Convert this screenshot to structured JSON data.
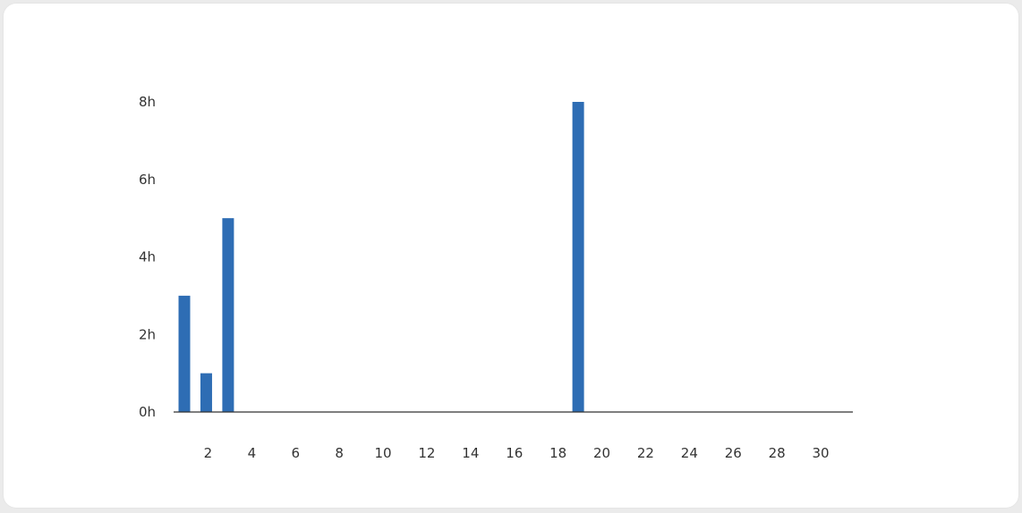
{
  "colors": {
    "bar": "#2e6db4",
    "axis": "#333333",
    "background": "#ffffff"
  },
  "chart_data": {
    "type": "bar",
    "title": "",
    "xlabel": "",
    "ylabel": "",
    "x": [
      1,
      2,
      3,
      4,
      5,
      6,
      7,
      8,
      9,
      10,
      11,
      12,
      13,
      14,
      15,
      16,
      17,
      18,
      19,
      20,
      21,
      22,
      23,
      24,
      25,
      26,
      27,
      28,
      29,
      30
    ],
    "values": [
      3,
      1,
      5,
      0,
      0,
      0,
      0,
      0,
      0,
      0,
      0,
      0,
      0,
      0,
      0,
      0,
      0,
      0,
      8,
      0,
      0,
      0,
      0,
      0,
      0,
      0,
      0,
      0,
      0,
      0
    ],
    "x_tick_labels": [
      "2",
      "4",
      "6",
      "8",
      "10",
      "12",
      "14",
      "16",
      "18",
      "20",
      "22",
      "24",
      "26",
      "28",
      "30"
    ],
    "y_ticks": [
      0,
      2,
      4,
      6,
      8
    ],
    "y_tick_labels": [
      "0h",
      "2h",
      "4h",
      "6h",
      "8h"
    ],
    "ylim": [
      0,
      8
    ],
    "grid": false,
    "legend": "none"
  }
}
